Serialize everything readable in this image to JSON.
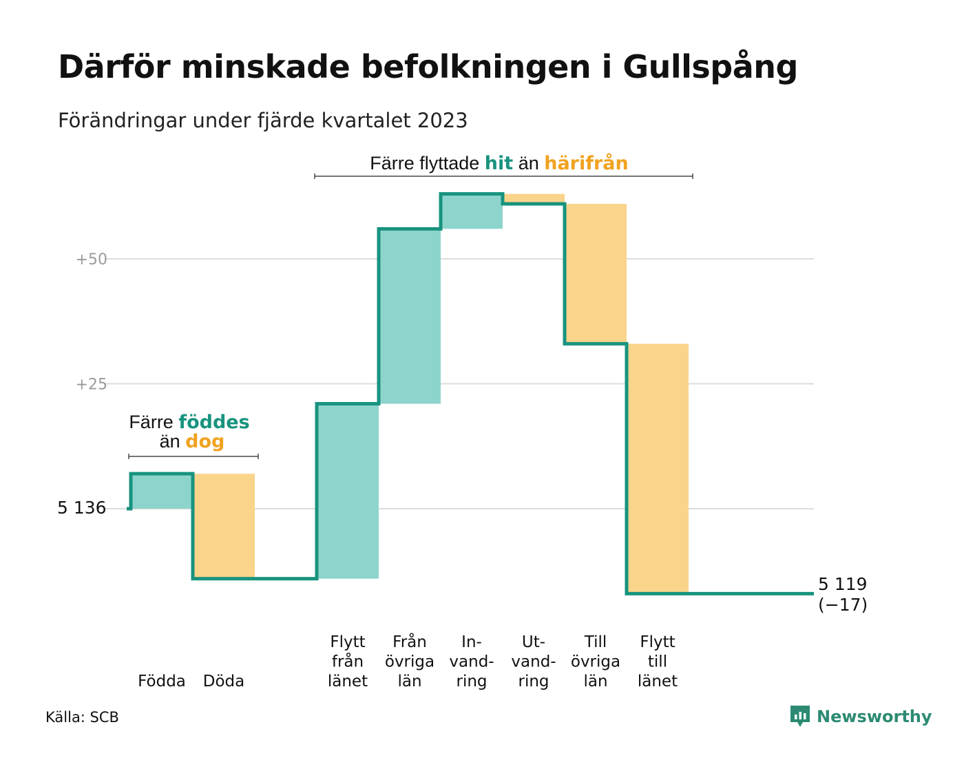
{
  "title": "Därför minskade befolkningen i Gullspång",
  "subtitle": "Förändringar under fjärde kvartalet 2023",
  "colors": {
    "increase": "#8dd5cc",
    "decrease": "#fad48b",
    "line": "#18937f",
    "hit": "#18937f",
    "harifran": "#f0a21f",
    "grid": "#dcdcdc",
    "tick": "#9a9a9a"
  },
  "annotations": {
    "births_deaths": {
      "line1_a": "Färre ",
      "line1_b": "föddes",
      "line2_a": "än ",
      "line2_b": "dog"
    },
    "migration": {
      "a": "Färre flyttade ",
      "b": "hit",
      "c": " än ",
      "d": "härifrån"
    }
  },
  "source": "Källa: SCB",
  "logo": {
    "name": "Newsworthy",
    "icon": "newsworthy-bar-chart-icon"
  },
  "chart_data": {
    "type": "waterfall",
    "start_value": 5136,
    "start_label": "5  136",
    "end_label_value": "5 119",
    "end_label_change": "(−17)",
    "yticks": [
      {
        "value": 50,
        "label": "+50"
      },
      {
        "value": 25,
        "label": "+25"
      }
    ],
    "ylim": [
      -22,
      68
    ],
    "categories": [
      {
        "label": [
          "Födda"
        ],
        "change": 7
      },
      {
        "label": [
          "Döda"
        ],
        "change": -21
      },
      {
        "label": [],
        "change": 0
      },
      {
        "label": [
          "Flytt",
          "från",
          "länet"
        ],
        "change": 35
      },
      {
        "label": [
          "Från",
          "övriga",
          "län"
        ],
        "change": 35
      },
      {
        "label": [
          "In-",
          "vand-",
          "ring"
        ],
        "change": 7
      },
      {
        "label": [
          "Ut-",
          "vand-",
          "ring"
        ],
        "change": -2
      },
      {
        "label": [
          "Till",
          "övriga",
          "län"
        ],
        "change": -28
      },
      {
        "label": [
          "Flytt",
          "till",
          "länet"
        ],
        "change": -50
      }
    ]
  }
}
